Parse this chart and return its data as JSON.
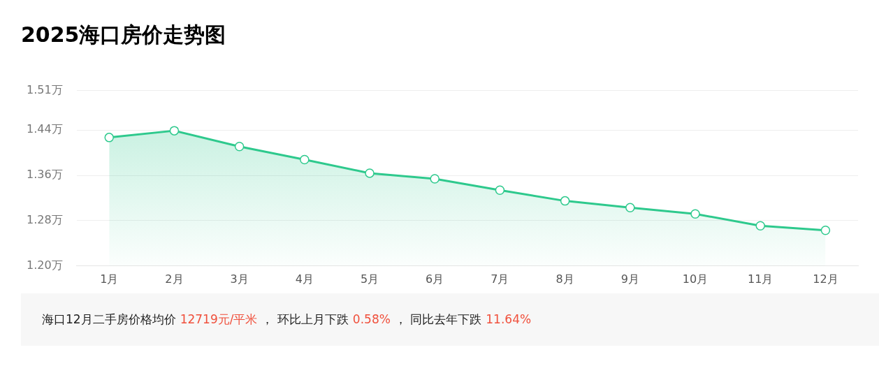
{
  "chart_data": {
    "type": "area",
    "title": "2025海口房价走势图",
    "categories": [
      "1月",
      "2月",
      "3月",
      "4月",
      "5月",
      "6月",
      "7月",
      "8月",
      "9月",
      "10月",
      "11月",
      "12月"
    ],
    "series": [
      {
        "color": "#2ec98d",
        "values": [
          1.427,
          1.439,
          1.411,
          1.388,
          1.364,
          1.354,
          1.334,
          1.315,
          1.303,
          1.292,
          1.271,
          1.263
        ]
      }
    ],
    "ylim": [
      1.2,
      1.51
    ],
    "yticks": [
      {
        "value": 1.2,
        "label": "1.20万"
      },
      {
        "value": 1.28,
        "label": "1.28万"
      },
      {
        "value": 1.36,
        "label": "1.36万"
      },
      {
        "value": 1.44,
        "label": "1.44万"
      },
      {
        "value": 1.51,
        "label": "1.51万"
      }
    ],
    "grid": "y",
    "marker": "circle",
    "legend": false,
    "annotations": [
      "海口12月二手房价格均价",
      "12719元/平米",
      "， 环比上月下跌",
      "0.58%",
      "， 同比去年下跌",
      "11.64%"
    ]
  }
}
